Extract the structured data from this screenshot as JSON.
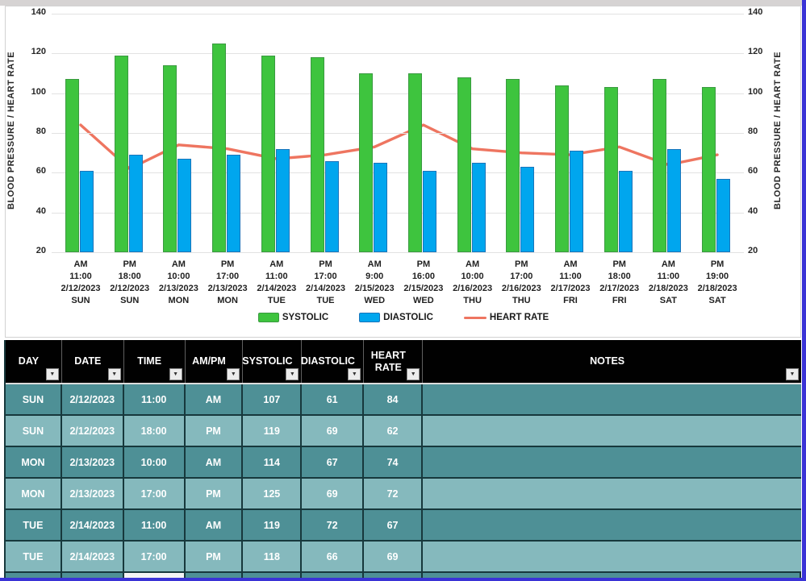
{
  "chart_data": {
    "type": "bar",
    "subtype": "grouped-bars-with-line-overlay",
    "title": "",
    "ylabel_left": "BLOOD PRESSURE  /  HEART RATE",
    "ylabel_right": "BLOOD PRESSURE  /  HEART RATE",
    "ylim": [
      20,
      140
    ],
    "yticks": [
      140,
      120,
      100,
      80,
      60,
      40,
      20
    ],
    "grid": true,
    "legend_position": "bottom",
    "categories": [
      {
        "ampm": "AM",
        "time": "11:00",
        "date": "2/12/2023",
        "day": "SUN"
      },
      {
        "ampm": "PM",
        "time": "18:00",
        "date": "2/12/2023",
        "day": "SUN"
      },
      {
        "ampm": "AM",
        "time": "10:00",
        "date": "2/13/2023",
        "day": "MON"
      },
      {
        "ampm": "PM",
        "time": "17:00",
        "date": "2/13/2023",
        "day": "MON"
      },
      {
        "ampm": "AM",
        "time": "11:00",
        "date": "2/14/2023",
        "day": "TUE"
      },
      {
        "ampm": "PM",
        "time": "17:00",
        "date": "2/14/2023",
        "day": "TUE"
      },
      {
        "ampm": "AM",
        "time": "9:00",
        "date": "2/15/2023",
        "day": "WED"
      },
      {
        "ampm": "PM",
        "time": "16:00",
        "date": "2/15/2023",
        "day": "WED"
      },
      {
        "ampm": "AM",
        "time": "10:00",
        "date": "2/16/2023",
        "day": "THU"
      },
      {
        "ampm": "PM",
        "time": "17:00",
        "date": "2/16/2023",
        "day": "THU"
      },
      {
        "ampm": "AM",
        "time": "11:00",
        "date": "2/17/2023",
        "day": "FRI"
      },
      {
        "ampm": "PM",
        "time": "18:00",
        "date": "2/17/2023",
        "day": "FRI"
      },
      {
        "ampm": "AM",
        "time": "11:00",
        "date": "2/18/2023",
        "day": "SAT"
      },
      {
        "ampm": "PM",
        "time": "19:00",
        "date": "2/18/2023",
        "day": "SAT"
      }
    ],
    "series": [
      {
        "name": "SYSTOLIC",
        "type": "bar",
        "color": "#3ec43e",
        "border": "#3a9a40",
        "values": [
          107,
          119,
          114,
          125,
          119,
          118,
          110,
          110,
          108,
          107,
          104,
          103,
          107,
          103
        ]
      },
      {
        "name": "DIASTOLIC",
        "type": "bar",
        "color": "#00a6ee",
        "border": "#1b75bb",
        "values": [
          61,
          69,
          67,
          69,
          72,
          66,
          65,
          61,
          65,
          63,
          71,
          61,
          72,
          57
        ]
      },
      {
        "name": "HEART RATE",
        "type": "line",
        "color": "#ee7560",
        "values": [
          84,
          62,
          74,
          72,
          67,
          69,
          73,
          84,
          72,
          70,
          69,
          73,
          64,
          69
        ]
      }
    ]
  },
  "table": {
    "headers": [
      "DAY",
      "DATE",
      "TIME",
      "AM/PM",
      "SYSTOLIC",
      "DIASTOLIC",
      "HEART RATE",
      "NOTES"
    ],
    "filter_icon": "▼",
    "rows": [
      {
        "day": "SUN",
        "date": "2/12/2023",
        "time": "11:00",
        "ampm": "AM",
        "systolic": "107",
        "diastolic": "61",
        "heart_rate": "84",
        "notes": ""
      },
      {
        "day": "SUN",
        "date": "2/12/2023",
        "time": "18:00",
        "ampm": "PM",
        "systolic": "119",
        "diastolic": "69",
        "heart_rate": "62",
        "notes": ""
      },
      {
        "day": "MON",
        "date": "2/13/2023",
        "time": "10:00",
        "ampm": "AM",
        "systolic": "114",
        "diastolic": "67",
        "heart_rate": "74",
        "notes": ""
      },
      {
        "day": "MON",
        "date": "2/13/2023",
        "time": "17:00",
        "ampm": "PM",
        "systolic": "125",
        "diastolic": "69",
        "heart_rate": "72",
        "notes": ""
      },
      {
        "day": "TUE",
        "date": "2/14/2023",
        "time": "11:00",
        "ampm": "AM",
        "systolic": "119",
        "diastolic": "72",
        "heart_rate": "67",
        "notes": ""
      },
      {
        "day": "TUE",
        "date": "2/14/2023",
        "time": "17:00",
        "ampm": "PM",
        "systolic": "118",
        "diastolic": "66",
        "heart_rate": "69",
        "notes": ""
      }
    ]
  },
  "colors": {
    "systolic": "#3ec43e",
    "diastolic": "#00a6ee",
    "heart_rate": "#ee7560",
    "row_dark": "#4e9096",
    "row_light": "#85b9bd",
    "header_bg": "#010101",
    "window_border": "#3a33d6"
  }
}
